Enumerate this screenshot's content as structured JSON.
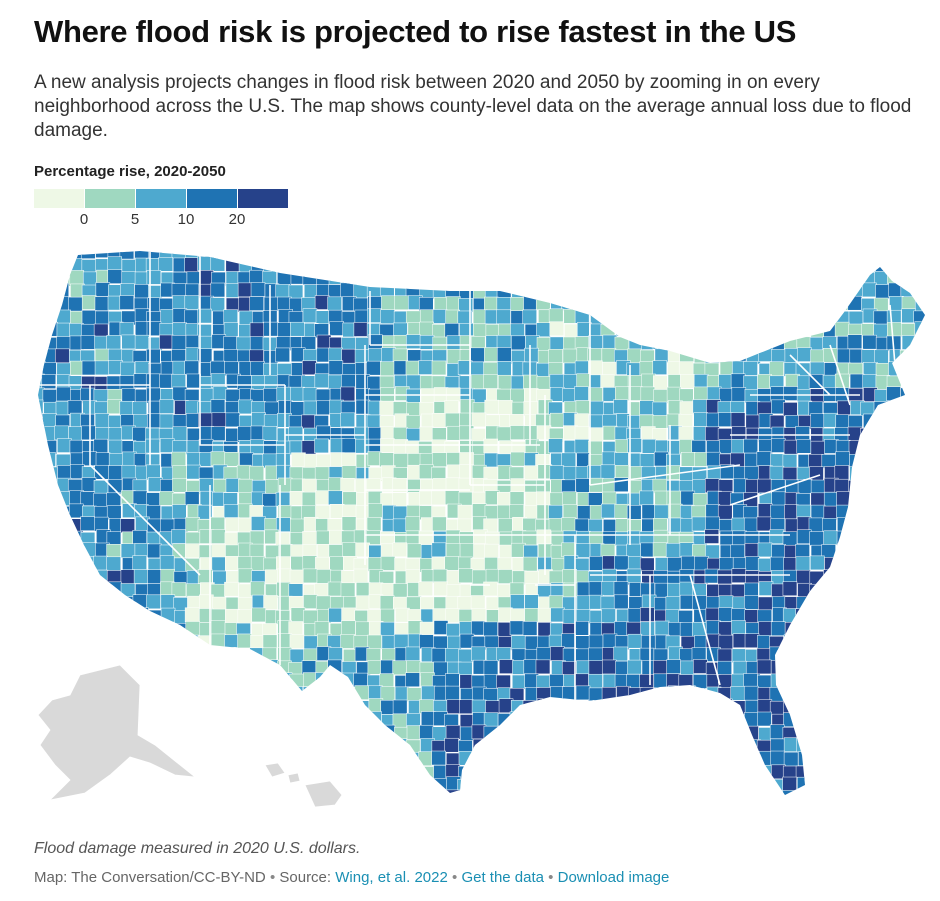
{
  "title": "Where flood risk is projected to rise fastest in the US",
  "subtitle": "A new analysis projects changes in flood risk between 2020 and 2050 by zooming in on every neighborhood across the U.S. The map shows county-level data on the average annual loss due to flood damage.",
  "legend": {
    "title": "Percentage rise, 2020-2050",
    "colors": [
      "#eef8e6",
      "#9fd8c0",
      "#4ea9cf",
      "#1f73b3",
      "#26428a"
    ],
    "ticks": [
      "0",
      "5",
      "10",
      "20"
    ]
  },
  "map": {
    "no_data_color": "#d9d9d9",
    "note": "Flood damage measured in 2020 U.S. dollars."
  },
  "credits": {
    "prefix": "Map: The Conversation/CC-BY-ND",
    "separator": "•",
    "source_label": "Source:",
    "source_link": "Wing, et al. 2022",
    "data_link": "Get the data",
    "image_link": "Download image"
  }
}
